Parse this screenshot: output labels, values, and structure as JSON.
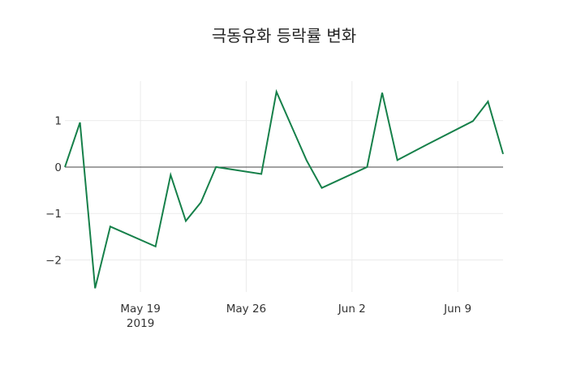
{
  "chart_data": {
    "type": "line",
    "title": "극동유화 등락률 변화",
    "xlabel": "",
    "ylabel": "",
    "x": [
      "2019-05-14",
      "2019-05-15",
      "2019-05-16",
      "2019-05-17",
      "2019-05-20",
      "2019-05-21",
      "2019-05-22",
      "2019-05-23",
      "2019-05-24",
      "2019-05-27",
      "2019-05-28",
      "2019-05-29",
      "2019-05-30",
      "2019-05-31",
      "2019-06-03",
      "2019-06-04",
      "2019-06-05",
      "2019-06-07",
      "2019-06-10",
      "2019-06-11",
      "2019-06-12"
    ],
    "series": [
      {
        "name": "등락률",
        "color": "#16804a",
        "values": [
          0.0,
          0.96,
          -2.61,
          -1.28,
          -1.71,
          -0.17,
          -1.16,
          -0.76,
          0.0,
          -0.15,
          1.62,
          0.88,
          0.14,
          -0.45,
          0.0,
          1.6,
          0.15,
          0.49,
          0.99,
          1.41,
          0.28
        ]
      }
    ],
    "xlim": [
      "2019-05-14",
      "2019-06-12"
    ],
    "ylim": [
      -2.69,
      1.85
    ],
    "yticks": [
      1,
      0,
      -1,
      -2
    ],
    "ytick_labels": [
      "1",
      "0",
      "−1",
      "−2"
    ],
    "xticks": [
      "2019-05-19",
      "2019-05-26",
      "2019-06-02",
      "2019-06-09"
    ],
    "xtick_labels": [
      "May 19",
      "May 26",
      "Jun 2",
      "Jun 9"
    ],
    "xtick_sublabel": "2019",
    "grid": true,
    "zero_line": true,
    "legend": null
  }
}
